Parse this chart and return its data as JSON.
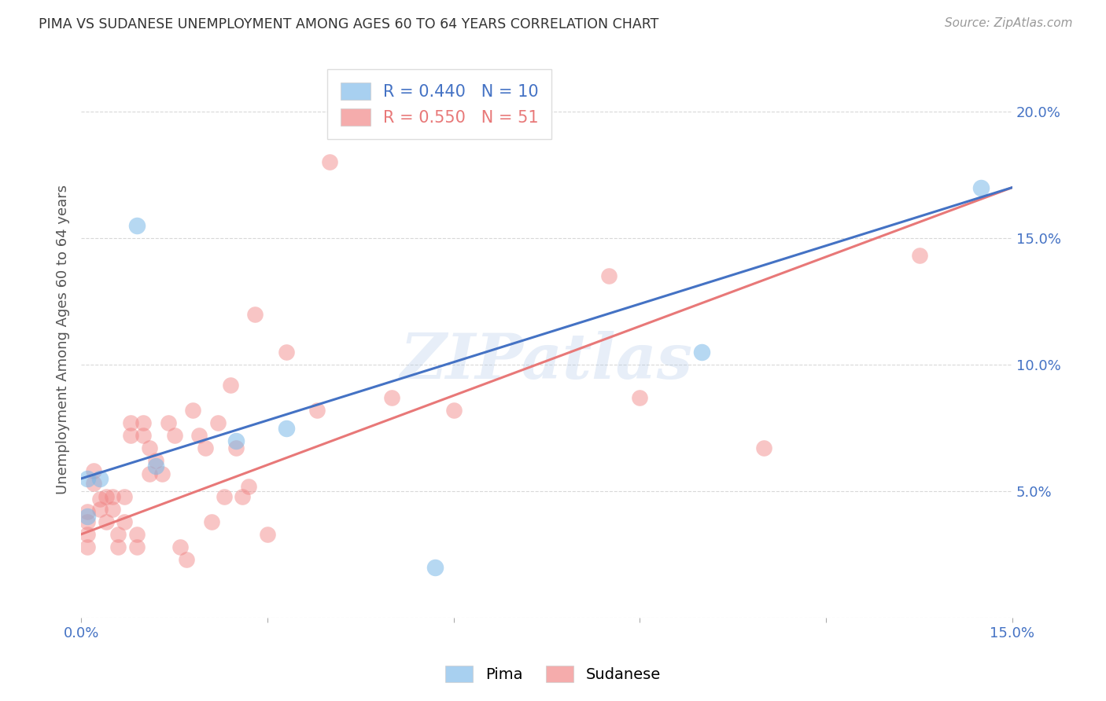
{
  "title": "PIMA VS SUDANESE UNEMPLOYMENT AMONG AGES 60 TO 64 YEARS CORRELATION CHART",
  "source": "Source: ZipAtlas.com",
  "ylabel": "Unemployment Among Ages 60 to 64 years",
  "xlim": [
    0.0,
    0.15
  ],
  "ylim": [
    0.0,
    0.22
  ],
  "background_color": "#ffffff",
  "grid_color": "#d8d8d8",
  "pima_color": "#7ab8e8",
  "sudanese_color": "#f08080",
  "pima_line_color": "#4472c4",
  "sudanese_line_color": "#e87878",
  "pima_R": 0.44,
  "pima_N": 10,
  "sudanese_R": 0.55,
  "sudanese_N": 51,
  "watermark": "ZIPatlas",
  "pima_line_x0": 0.0,
  "pima_line_y0": 0.055,
  "pima_line_x1": 0.15,
  "pima_line_y1": 0.17,
  "sudanese_line_x0": 0.0,
  "sudanese_line_y0": 0.033,
  "sudanese_line_x1": 0.15,
  "sudanese_line_y1": 0.17,
  "pima_x": [
    0.001,
    0.003,
    0.009,
    0.012,
    0.025,
    0.033,
    0.057,
    0.1,
    0.145,
    0.001
  ],
  "pima_y": [
    0.055,
    0.055,
    0.155,
    0.06,
    0.07,
    0.075,
    0.02,
    0.105,
    0.17,
    0.04
  ],
  "sudanese_x": [
    0.001,
    0.001,
    0.001,
    0.001,
    0.002,
    0.002,
    0.003,
    0.003,
    0.004,
    0.004,
    0.005,
    0.005,
    0.006,
    0.006,
    0.007,
    0.007,
    0.008,
    0.008,
    0.009,
    0.009,
    0.01,
    0.01,
    0.011,
    0.011,
    0.012,
    0.013,
    0.014,
    0.015,
    0.016,
    0.017,
    0.018,
    0.019,
    0.02,
    0.021,
    0.022,
    0.023,
    0.024,
    0.025,
    0.026,
    0.027,
    0.028,
    0.03,
    0.033,
    0.038,
    0.04,
    0.05,
    0.06,
    0.085,
    0.09,
    0.11,
    0.135
  ],
  "sudanese_y": [
    0.042,
    0.038,
    0.033,
    0.028,
    0.058,
    0.053,
    0.047,
    0.043,
    0.048,
    0.038,
    0.048,
    0.043,
    0.033,
    0.028,
    0.048,
    0.038,
    0.077,
    0.072,
    0.033,
    0.028,
    0.077,
    0.072,
    0.067,
    0.057,
    0.062,
    0.057,
    0.077,
    0.072,
    0.028,
    0.023,
    0.082,
    0.072,
    0.067,
    0.038,
    0.077,
    0.048,
    0.092,
    0.067,
    0.048,
    0.052,
    0.12,
    0.033,
    0.105,
    0.082,
    0.18,
    0.087,
    0.082,
    0.135,
    0.087,
    0.067,
    0.143
  ]
}
